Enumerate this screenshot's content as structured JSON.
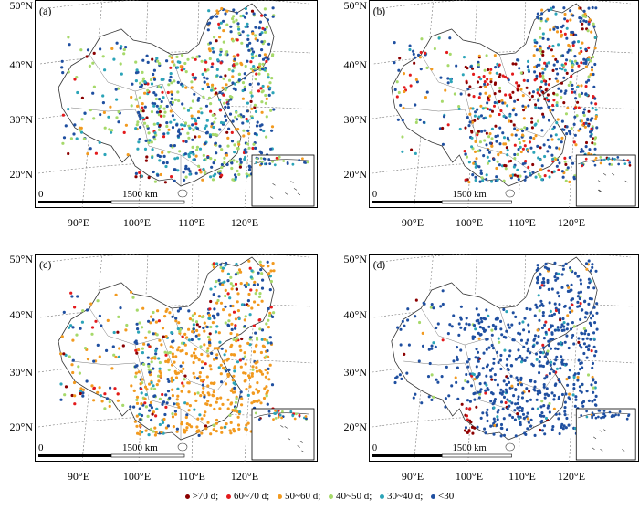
{
  "panels": [
    {
      "id": "a",
      "label": "(a)",
      "scheme": [
        0.04,
        0.06,
        0.1,
        0.28,
        0.18,
        0.34
      ],
      "hotspot": "sw"
    },
    {
      "id": "b",
      "label": "(b)",
      "scheme": [
        0.1,
        0.1,
        0.14,
        0.14,
        0.16,
        0.36
      ],
      "hotspot": "north"
    },
    {
      "id": "c",
      "label": "(c)",
      "scheme": [
        0.03,
        0.06,
        0.34,
        0.18,
        0.14,
        0.25
      ],
      "hotspot": "east"
    },
    {
      "id": "d",
      "label": "(d)",
      "scheme": [
        0.02,
        0.03,
        0.04,
        0.03,
        0.05,
        0.83
      ],
      "hotspot": "sw"
    }
  ],
  "lat_labels": [
    "50°N",
    "40°N",
    "30°N",
    "20°N"
  ],
  "lon_labels": [
    "90°E",
    "100°E",
    "110°E",
    "120°E"
  ],
  "scalebar": {
    "zero": "0",
    "distance": "1500 km"
  },
  "legend": [
    {
      "label": ">70 d;",
      "color": "#8b0000"
    },
    {
      "label": "60~70 d;",
      "color": "#e31a1c"
    },
    {
      "label": "50~60 d;",
      "color": "#f29a1f"
    },
    {
      "label": "40~50 d;",
      "color": "#a6d96a"
    },
    {
      "label": "30~40 d;",
      "color": "#2ba4b8"
    },
    {
      "label": "<30",
      "color": "#1f4fa0"
    }
  ]
}
